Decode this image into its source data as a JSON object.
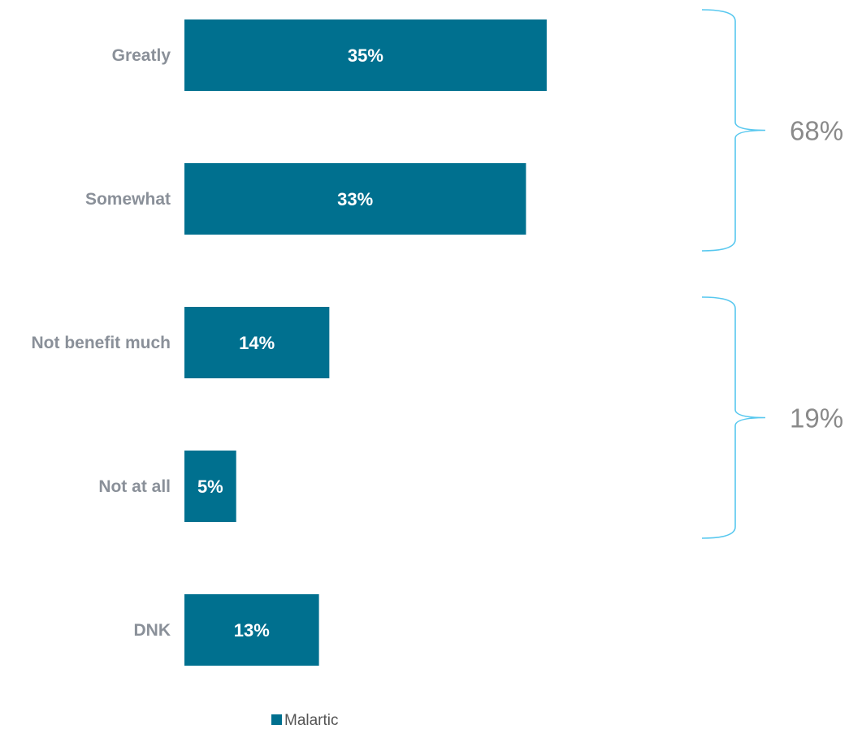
{
  "chart_data": {
    "type": "bar",
    "orientation": "horizontal",
    "categories": [
      "Greatly",
      "Somewhat",
      "Not benefit much",
      "Not at all",
      "DNK"
    ],
    "series": [
      {
        "name": "Malartic",
        "values": [
          35,
          33,
          14,
          5,
          13
        ],
        "data_labels": [
          "35%",
          "33%",
          "14%",
          "5%",
          "13%"
        ]
      }
    ],
    "xlim": [
      0,
      50
    ],
    "grid": false,
    "legend": {
      "position": "bottom",
      "entries": [
        "Malartic"
      ]
    },
    "annotations": [
      {
        "type": "bracket",
        "label": "68%",
        "categories": [
          "Greatly",
          "Somewhat"
        ]
      },
      {
        "type": "bracket",
        "label": "19%",
        "categories": [
          "Not benefit much",
          "Not at all"
        ]
      }
    ]
  },
  "colors": {
    "bar": "#00708f",
    "bracket": "#58c8ef",
    "category_text": "#8a9099",
    "bracket_text": "#8a8a8a"
  }
}
